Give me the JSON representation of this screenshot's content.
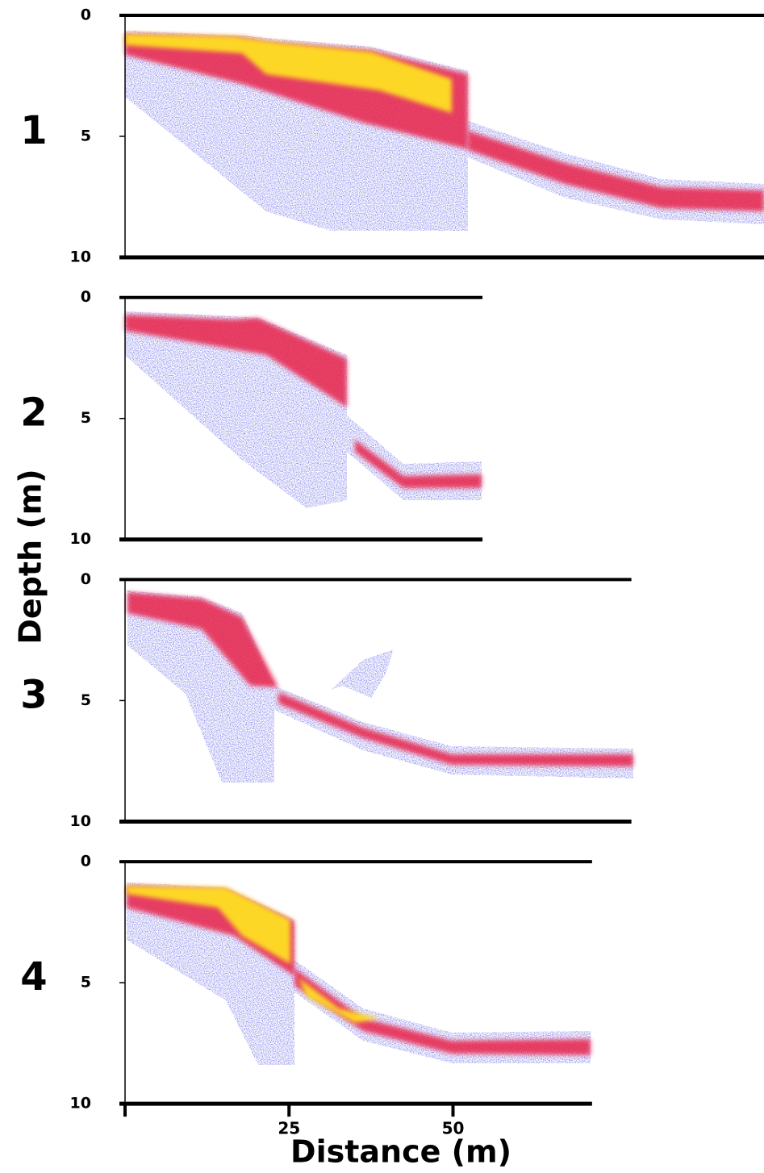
{
  "ylabel": "Depth (m)",
  "chart_data": [
    {
      "type": "echogram",
      "panel_label": "1",
      "xlim": [
        0,
        97.6
      ],
      "ylim": [
        0,
        10
      ],
      "yticks": [
        0,
        5,
        10
      ]
    },
    {
      "type": "echogram",
      "panel_label": "2",
      "xlim": [
        0,
        54.5
      ],
      "ylim": [
        0,
        10
      ],
      "yticks": [
        0,
        5,
        10
      ]
    },
    {
      "type": "echogram",
      "panel_label": "3",
      "xlim": [
        0,
        77.2
      ],
      "ylim": [
        0,
        10
      ],
      "yticks": [
        0,
        5,
        10
      ]
    },
    {
      "type": "echogram",
      "panel_label": "4",
      "xlim": [
        0,
        71.2
      ],
      "ylim": [
        0,
        10
      ],
      "yticks": [
        0,
        5,
        10
      ],
      "xticks": [
        25,
        50
      ],
      "xlabel": "Distance (m)"
    }
  ]
}
